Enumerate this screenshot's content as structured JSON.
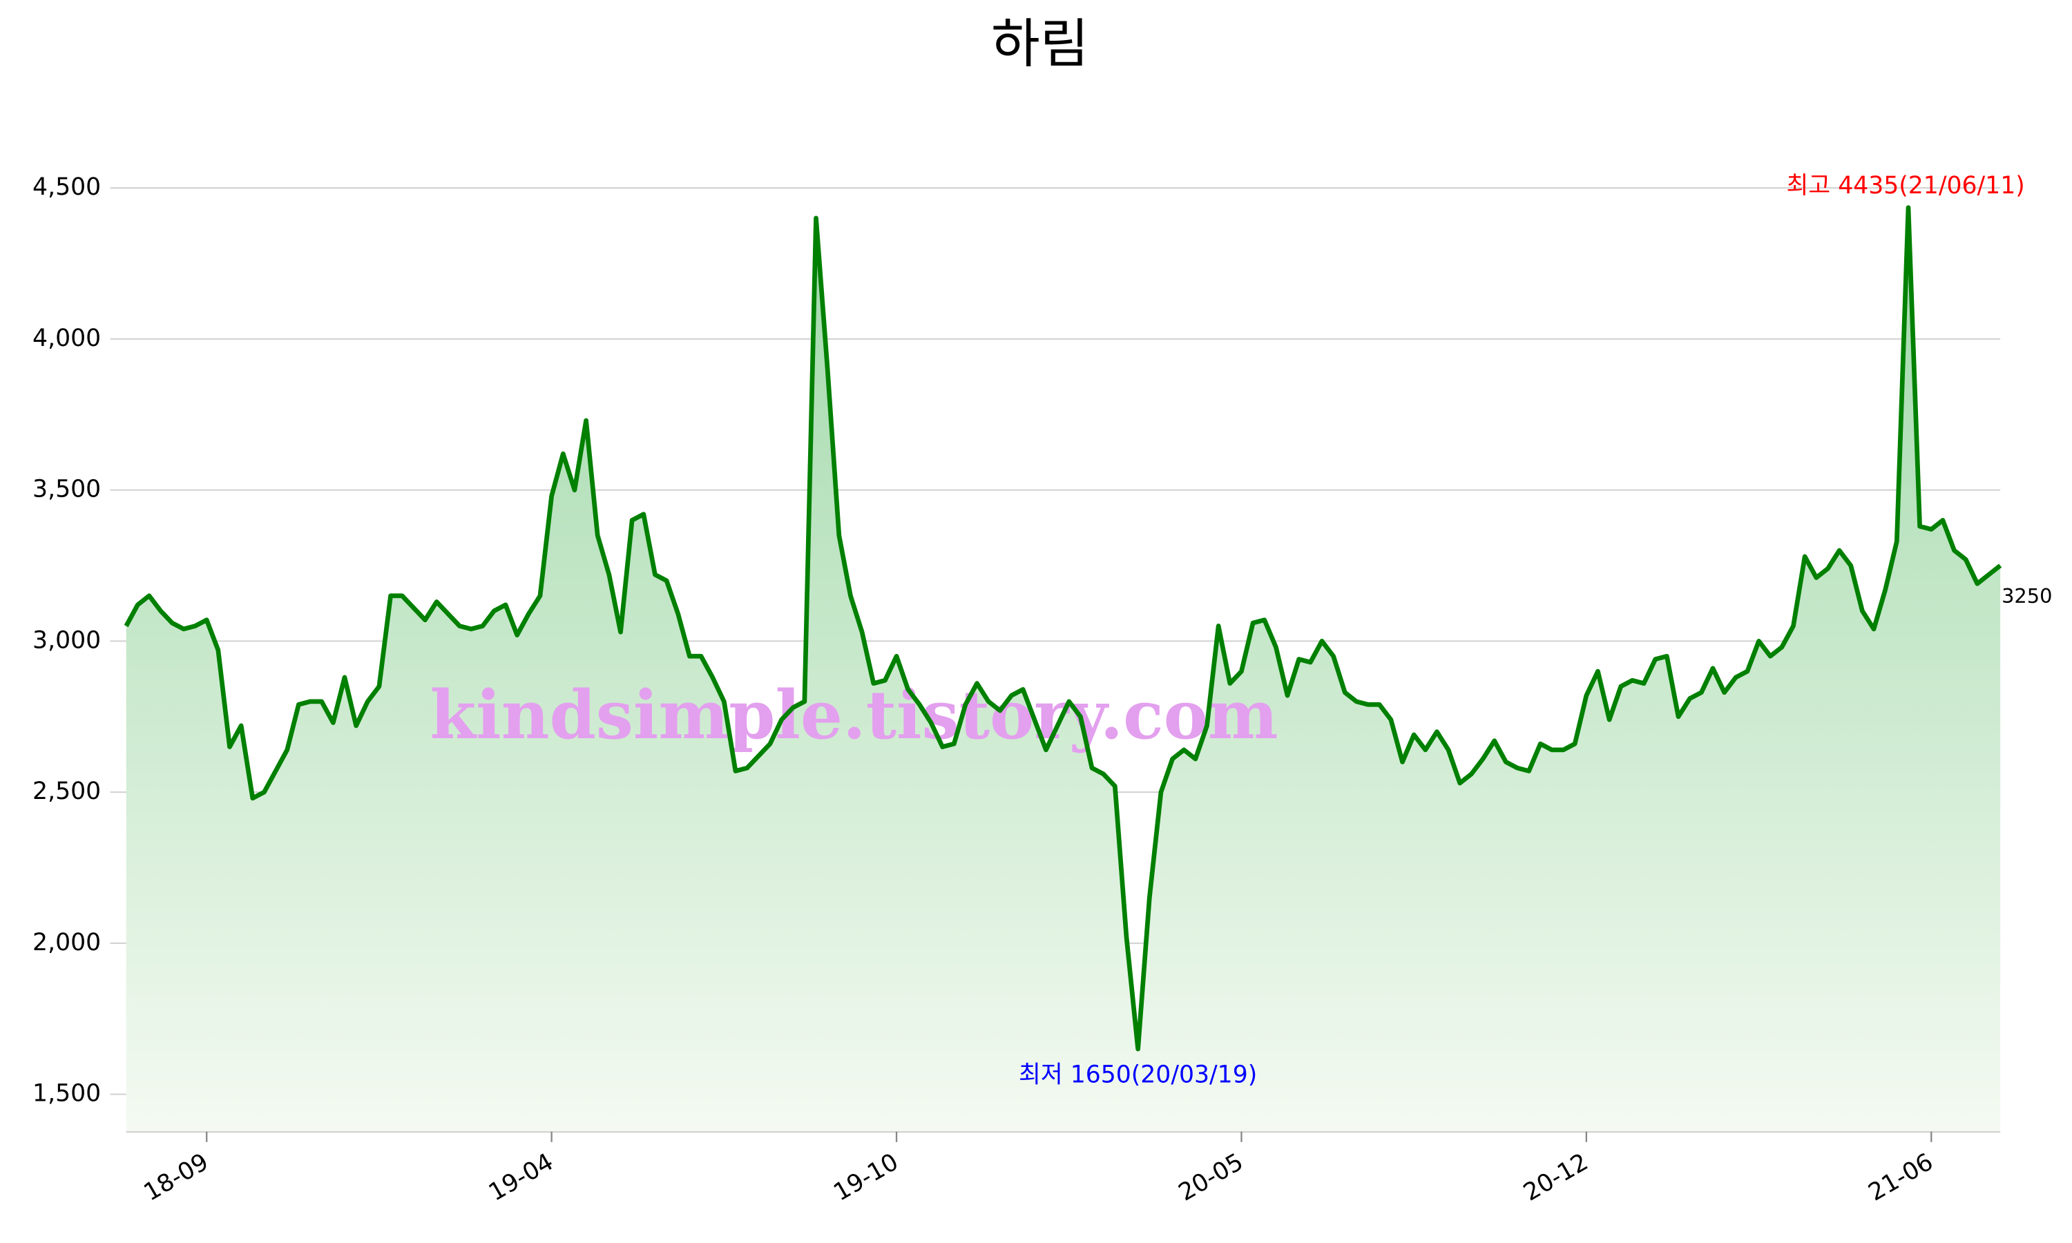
{
  "chart_data": {
    "type": "line",
    "title": "하림",
    "watermark": "kindsimple.tistory.com",
    "categories": [
      null,
      null,
      null,
      null,
      null,
      null,
      null,
      "18-09",
      null,
      null,
      null,
      null,
      null,
      null,
      null,
      null,
      null,
      null,
      null,
      null,
      null,
      null,
      null,
      null,
      null,
      null,
      null,
      null,
      null,
      null,
      null,
      null,
      null,
      null,
      null,
      null,
      null,
      "19-04",
      null,
      null,
      null,
      null,
      null,
      null,
      null,
      null,
      null,
      null,
      null,
      null,
      null,
      null,
      null,
      null,
      null,
      null,
      null,
      null,
      null,
      null,
      null,
      null,
      null,
      null,
      null,
      null,
      null,
      "19-10",
      null,
      null,
      null,
      null,
      null,
      null,
      null,
      null,
      null,
      null,
      null,
      null,
      null,
      null,
      null,
      null,
      null,
      null,
      null,
      null,
      null,
      null,
      null,
      null,
      null,
      null,
      null,
      null,
      null,
      "20-05",
      null,
      null,
      null,
      null,
      null,
      null,
      null,
      null,
      null,
      null,
      null,
      null,
      null,
      null,
      null,
      null,
      null,
      null,
      null,
      null,
      null,
      null,
      null,
      null,
      null,
      null,
      null,
      null,
      null,
      "20-12",
      null,
      null,
      null,
      null,
      null,
      null,
      null,
      null,
      null,
      null,
      null,
      null,
      null,
      null,
      null,
      null,
      null,
      null,
      null,
      null,
      null,
      null,
      null,
      null,
      null,
      null,
      null,
      null,
      null,
      "21-06",
      null,
      null,
      null,
      null,
      null,
      null
    ],
    "series": [
      {
        "name": "하림",
        "color": "#008000",
        "values": [
          3050,
          3120,
          3150,
          3100,
          3060,
          3040,
          3050,
          3070,
          2970,
          2650,
          2720,
          2480,
          2500,
          2570,
          2640,
          2790,
          2800,
          2800,
          2730,
          2880,
          2720,
          2800,
          2850,
          3150,
          3150,
          3110,
          3070,
          3130,
          3090,
          3050,
          3040,
          3050,
          3100,
          3120,
          3020,
          3090,
          3150,
          3480,
          3620,
          3500,
          3730,
          3350,
          3220,
          3030,
          3400,
          3420,
          3220,
          3200,
          3090,
          2950,
          2950,
          2880,
          2800,
          2570,
          2580,
          2620,
          2660,
          2740,
          2780,
          2800,
          4400,
          3900,
          3350,
          3150,
          3030,
          2860,
          2870,
          2950,
          2840,
          2790,
          2730,
          2650,
          2660,
          2790,
          2860,
          2800,
          2770,
          2820,
          2840,
          2740,
          2640,
          2720,
          2800,
          2750,
          2580,
          2560,
          2520,
          2020,
          1650,
          2150,
          2500,
          2610,
          2640,
          2610,
          2720,
          3050,
          2860,
          2900,
          3060,
          3070,
          2980,
          2820,
          2940,
          2930,
          3000,
          2950,
          2830,
          2800,
          2790,
          2790,
          2740,
          2600,
          2690,
          2640,
          2700,
          2640,
          2530,
          2560,
          2610,
          2670,
          2600,
          2580,
          2570,
          2660,
          2640,
          2640,
          2660,
          2820,
          2900,
          2740,
          2850,
          2870,
          2860,
          2940,
          2950,
          2750,
          2810,
          2830,
          2910,
          2830,
          2880,
          2900,
          3000,
          2950,
          2980,
          3050,
          3280,
          3210,
          3240,
          3300,
          3250,
          3100,
          3040,
          3170,
          3330,
          4435,
          3380,
          3370,
          3400,
          3300,
          3270,
          3190,
          3220,
          3250
        ]
      }
    ],
    "annotations": [
      {
        "text": "최고 4435(21/06/11)",
        "color": "#ff0000"
      },
      {
        "text": "최저 1650(20/03/19)",
        "color": "#0000ff"
      }
    ],
    "ylim": [
      1377,
      4700
    ],
    "yticks": [
      {
        "value": 1500,
        "label": "1,500"
      },
      {
        "value": 2000,
        "label": "2,000"
      },
      {
        "value": 2500,
        "label": "2,500"
      },
      {
        "value": 3000,
        "label": "3,000"
      },
      {
        "value": 3500,
        "label": "3,500"
      },
      {
        "value": 4000,
        "label": "4,000"
      },
      {
        "value": 4500,
        "label": "4,500"
      }
    ],
    "grid": true
  }
}
